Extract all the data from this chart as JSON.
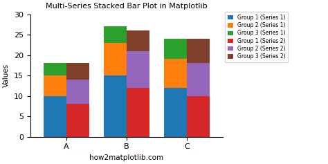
{
  "categories": [
    "A",
    "B",
    "C"
  ],
  "series1": {
    "group1": [
      10,
      15,
      12
    ],
    "group2": [
      5,
      8,
      7
    ],
    "group3": [
      3,
      4,
      5
    ]
  },
  "series2": {
    "group1": [
      8,
      12,
      10
    ],
    "group2": [
      6,
      9,
      8
    ],
    "group3": [
      4,
      5,
      6
    ]
  },
  "colors": {
    "s1_g1": "#1f77b4",
    "s1_g2": "#ff7f0e",
    "s1_g3": "#2ca02c",
    "s2_g1": "#d62728",
    "s2_g2": "#9467bd",
    "s2_g3": "#7f3f2a"
  },
  "legend_labels": [
    "Group 1 (Series 1)",
    "Group 2 (Series 1)",
    "Group 3 (Series 1)",
    "Group 1 (Series 2)",
    "Group 2 (Series 2)",
    "Group 3 (Series 2)"
  ],
  "title": "Multi-Series Stacked Bar Plot in Matplotlib",
  "xlabel": "how2matplotlib.com",
  "ylabel": "Values",
  "ylim": [
    0,
    30
  ],
  "bar_width": 0.38,
  "background_color": "#ffffff"
}
